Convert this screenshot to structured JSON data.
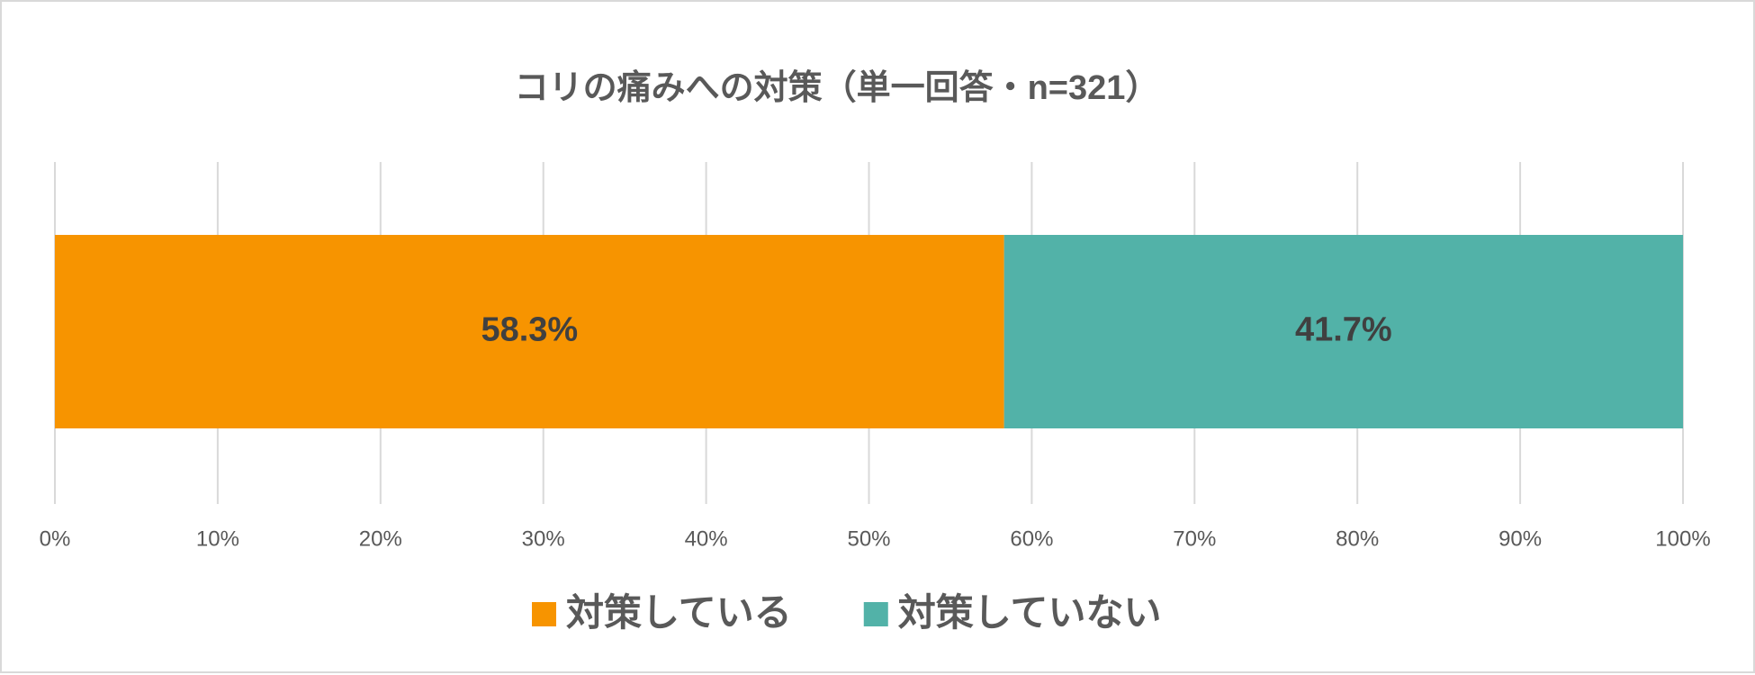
{
  "chart_data": {
    "type": "stacked-bar-horizontal",
    "title": "コリの痛みへの対策（単一回答・n=321）",
    "categories": [
      null
    ],
    "series": [
      {
        "name": "対策している",
        "color": "#f79400",
        "values": [
          58.3
        ],
        "value_labels": [
          "58.3%"
        ]
      },
      {
        "name": "対策していない",
        "color": "#52b2a8",
        "values": [
          41.7
        ],
        "value_labels": [
          "41.7%"
        ]
      }
    ],
    "xlim": [
      0,
      100
    ],
    "xticks": [
      {
        "value": 0,
        "label": "0%"
      },
      {
        "value": 10,
        "label": "10%"
      },
      {
        "value": 20,
        "label": "20%"
      },
      {
        "value": 30,
        "label": "30%"
      },
      {
        "value": 40,
        "label": "40%"
      },
      {
        "value": 50,
        "label": "50%"
      },
      {
        "value": 60,
        "label": "60%"
      },
      {
        "value": 70,
        "label": "70%"
      },
      {
        "value": 80,
        "label": "80%"
      },
      {
        "value": 90,
        "label": "90%"
      },
      {
        "value": 100,
        "label": "100%"
      }
    ],
    "grid": true,
    "legend": "bottom"
  }
}
